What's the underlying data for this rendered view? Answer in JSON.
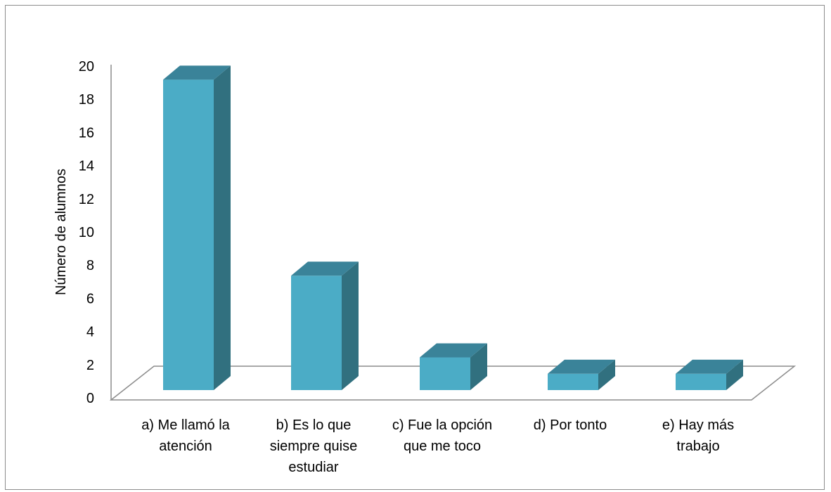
{
  "chart_data": {
    "type": "bar",
    "style": "3d-column",
    "categories": [
      [
        "a) Me llamó la",
        "atención"
      ],
      [
        "b) Es lo que",
        "siempre quise",
        "estudiar"
      ],
      [
        "c) Fue la opción",
        "que me toco"
      ],
      [
        "d) Por tonto"
      ],
      [
        "e) Hay más",
        "trabajo"
      ]
    ],
    "values": [
      19,
      7,
      2,
      1,
      1
    ],
    "ylabel": "Número de alumnos",
    "xlabel": "",
    "title": "",
    "ylim": [
      0,
      20
    ],
    "yticks": [
      0,
      2,
      4,
      6,
      8,
      10,
      12,
      14,
      16,
      18,
      20
    ],
    "grid": false,
    "legend": "none",
    "colors": {
      "front": "#4BACC6",
      "side": "#31707F",
      "top": "#3A8399",
      "floor_line": "#8C8C8C",
      "axis": "#8C8C8C"
    }
  }
}
